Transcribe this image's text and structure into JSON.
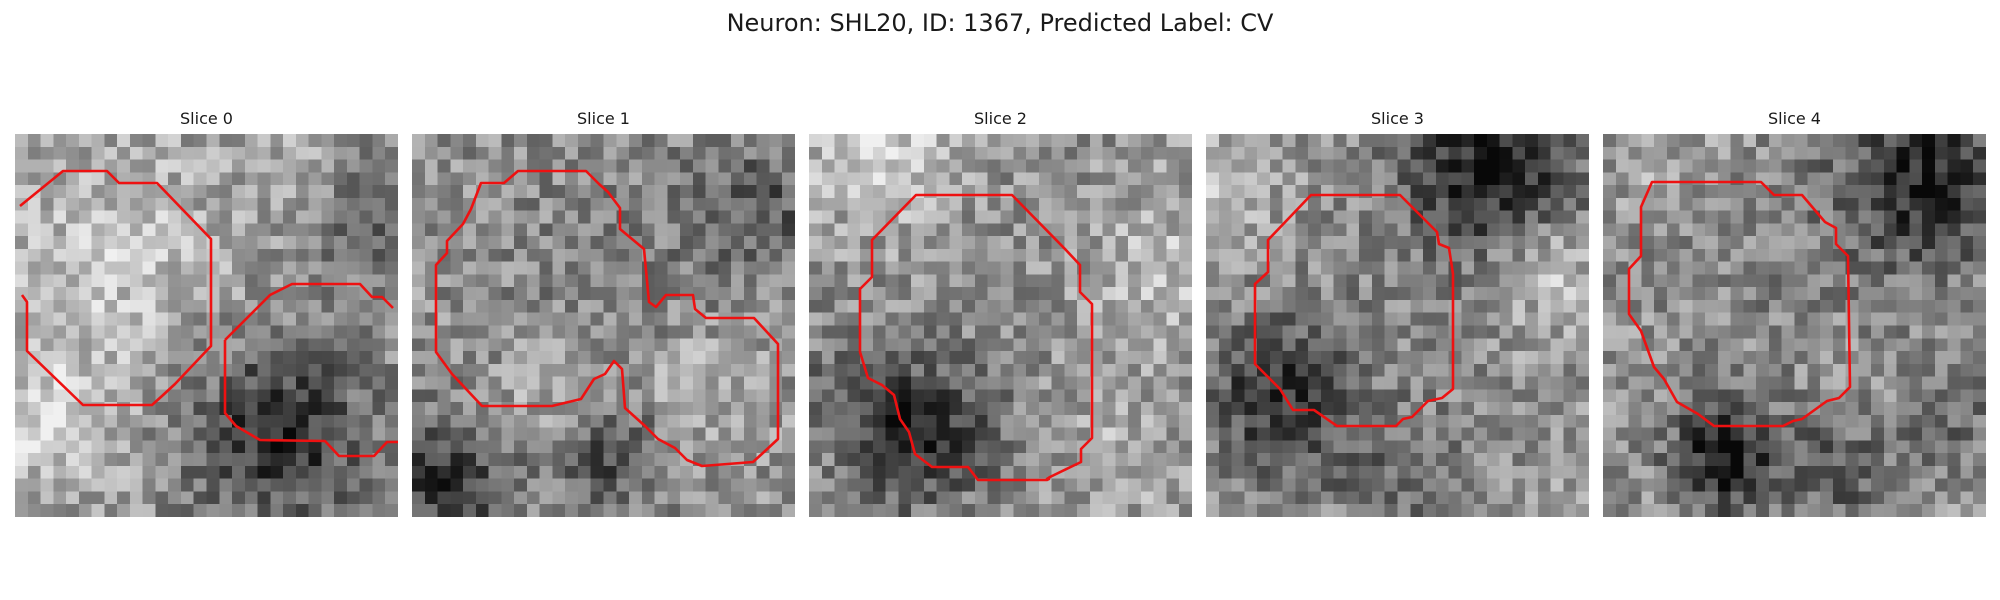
{
  "figure": {
    "title": "Neuron: SHL20, ID: 1367, Predicted Label: CV",
    "contour_color": "#ee1111"
  },
  "panels": [
    {
      "title": "Slice 0",
      "image_description": "grayscale microscopy patch, bright upper-left region, dark blob lower-center"
    },
    {
      "title": "Slice 1",
      "image_description": "grayscale microscopy patch, mottled texture, dark spots lower-left and lower-center"
    },
    {
      "title": "Slice 2",
      "image_description": "grayscale microscopy patch, dark band lower-left"
    },
    {
      "title": "Slice 3",
      "image_description": "grayscale microscopy patch, dark region top-right and lower-left"
    },
    {
      "title": "Slice 4",
      "image_description": "grayscale microscopy patch, dark regions top-right and bottom"
    }
  ]
}
